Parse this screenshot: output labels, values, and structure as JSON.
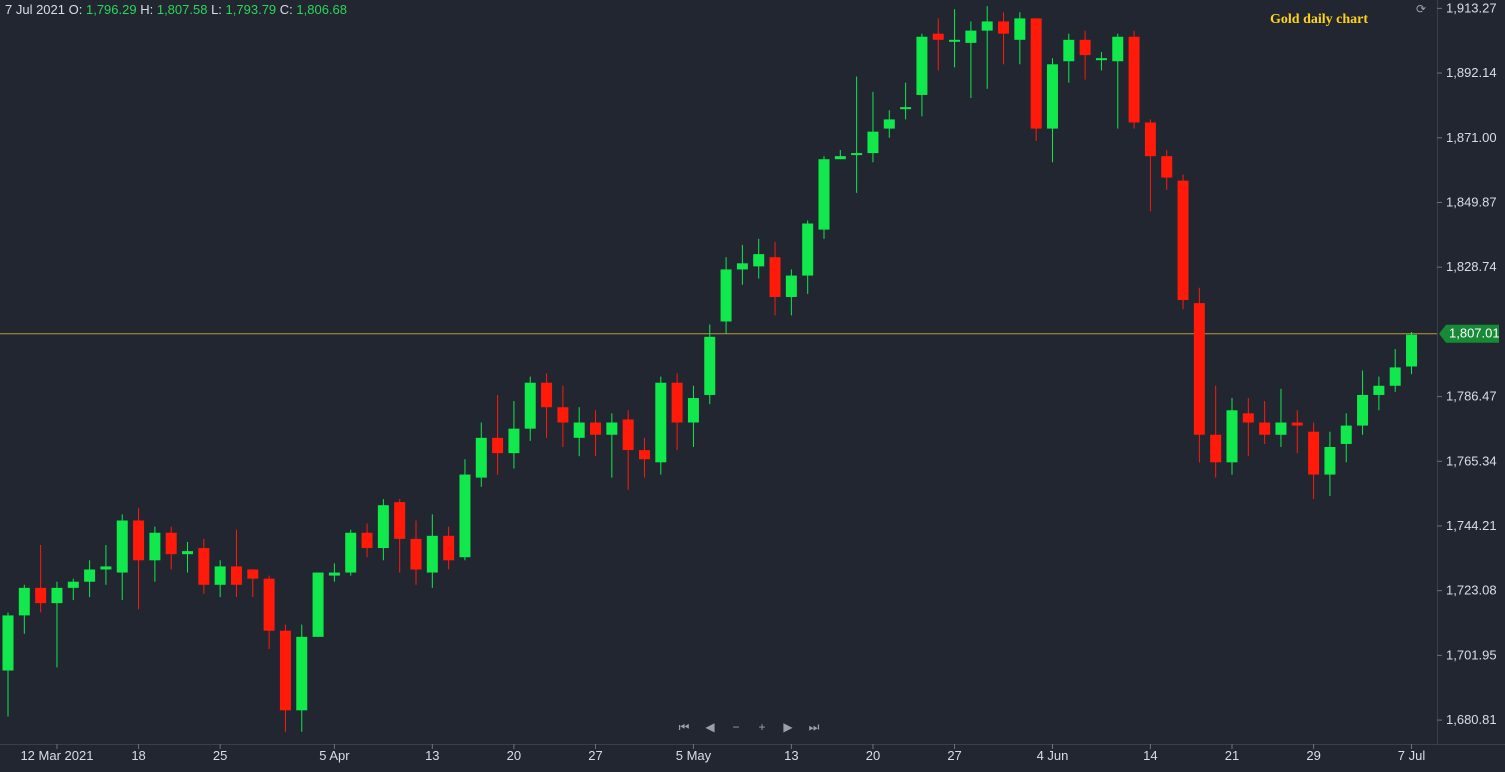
{
  "legend": {
    "date": "7 Jul 2021",
    "o_label": "O:",
    "o": "1,796.29",
    "h_label": "H:",
    "h": "1,807.58",
    "l_label": "L:",
    "l": "1,793.79",
    "c_label": "C:",
    "c": "1,806.68"
  },
  "title": "Gold daily chart",
  "current_price_label": "1,807.01",
  "colors": {
    "up": "#11e84c",
    "down": "#ff1a0a",
    "bg": "#212631",
    "grid": "#3a3f4a",
    "text": "#d9dde5",
    "price_line": "#b59a3a",
    "price_badge": "#178a35"
  },
  "nav": {
    "first": "⏮",
    "prev": "◀",
    "zoom_out": "−",
    "zoom_in": "+",
    "next": "▶",
    "last": "⏭"
  },
  "chart_data": {
    "type": "candlestick",
    "title": "Gold daily chart",
    "y_ticks": [
      "1,913.27",
      "1,892.14",
      "1,871.00",
      "1,849.87",
      "1,828.74",
      "1,807.01",
      "1,786.47",
      "1,765.34",
      "1,744.21",
      "1,723.08",
      "1,701.95",
      "1,680.81"
    ],
    "ylim": [
      1673,
      1916
    ],
    "current_price": 1807.01,
    "x_labels": [
      {
        "label": "12 Mar 2021",
        "index": 3
      },
      {
        "label": "18",
        "index": 8
      },
      {
        "label": "25",
        "index": 13
      },
      {
        "label": "5 Apr",
        "index": 20
      },
      {
        "label": "13",
        "index": 26
      },
      {
        "label": "20",
        "index": 31
      },
      {
        "label": "27",
        "index": 36
      },
      {
        "label": "5 May",
        "index": 42
      },
      {
        "label": "13",
        "index": 48
      },
      {
        "label": "20",
        "index": 53
      },
      {
        "label": "27",
        "index": 58
      },
      {
        "label": "4 Jun",
        "index": 64
      },
      {
        "label": "14",
        "index": 70
      },
      {
        "label": "21",
        "index": 75
      },
      {
        "label": "29",
        "index": 80
      },
      {
        "label": "7 Jul",
        "index": 86
      }
    ],
    "candles": [
      [
        1697,
        1715,
        1682,
        1716
      ],
      [
        1715,
        1724,
        1709,
        1725
      ],
      [
        1724,
        1719,
        1716,
        1738
      ],
      [
        1719,
        1724,
        1698,
        1726
      ],
      [
        1724,
        1726,
        1720,
        1727
      ],
      [
        1726,
        1730,
        1721,
        1733
      ],
      [
        1730,
        1731,
        1725,
        1738
      ],
      [
        1729,
        1746,
        1720,
        1748
      ],
      [
        1746,
        1733,
        1717,
        1750
      ],
      [
        1733,
        1742,
        1726,
        1744
      ],
      [
        1742,
        1735,
        1730,
        1744
      ],
      [
        1735,
        1736,
        1729,
        1739
      ],
      [
        1737,
        1725,
        1722,
        1740
      ],
      [
        1725,
        1731,
        1721,
        1733
      ],
      [
        1731,
        1725,
        1721,
        1743
      ],
      [
        1730,
        1727,
        1721,
        1730
      ],
      [
        1727,
        1710,
        1704,
        1728
      ],
      [
        1710,
        1684,
        1677,
        1712
      ],
      [
        1684,
        1708,
        1677,
        1712
      ],
      [
        1708,
        1729,
        1708,
        1729
      ],
      [
        1728,
        1729,
        1726,
        1732
      ],
      [
        1729,
        1742,
        1728,
        1743
      ],
      [
        1742,
        1737,
        1734,
        1745
      ],
      [
        1737,
        1751,
        1733,
        1753
      ],
      [
        1752,
        1740,
        1729,
        1753
      ],
      [
        1740,
        1730,
        1725,
        1746
      ],
      [
        1729,
        1741,
        1724,
        1748
      ],
      [
        1741,
        1733,
        1730,
        1744
      ],
      [
        1734,
        1761,
        1733,
        1766
      ],
      [
        1760,
        1773,
        1757,
        1778
      ],
      [
        1773,
        1768,
        1761,
        1787
      ],
      [
        1768,
        1776,
        1763,
        1785
      ],
      [
        1776,
        1791,
        1772,
        1793
      ],
      [
        1791,
        1783,
        1773,
        1794
      ],
      [
        1783,
        1778,
        1770,
        1790
      ],
      [
        1773,
        1778,
        1767,
        1783
      ],
      [
        1778,
        1774,
        1767,
        1782
      ],
      [
        1774,
        1778,
        1760,
        1781
      ],
      [
        1779,
        1769,
        1756,
        1782
      ],
      [
        1769,
        1766,
        1760,
        1773
      ],
      [
        1765,
        1791,
        1761,
        1793
      ],
      [
        1791,
        1778,
        1769,
        1794
      ],
      [
        1778,
        1786,
        1770,
        1790
      ],
      [
        1787,
        1806,
        1784,
        1810
      ],
      [
        1811,
        1828,
        1807,
        1832
      ],
      [
        1828,
        1830,
        1823,
        1836
      ],
      [
        1829,
        1833,
        1825,
        1838
      ],
      [
        1832,
        1819,
        1813,
        1837
      ],
      [
        1819,
        1826,
        1813,
        1828
      ],
      [
        1826,
        1843,
        1820,
        1844
      ],
      [
        1841,
        1864,
        1838,
        1865
      ],
      [
        1864,
        1865,
        1864,
        1867
      ],
      [
        1866,
        1866,
        1853,
        1891
      ],
      [
        1866,
        1873,
        1863,
        1886
      ],
      [
        1874,
        1877,
        1871,
        1880
      ],
      [
        1881,
        1881,
        1877,
        1889
      ],
      [
        1885,
        1904,
        1878,
        1905
      ],
      [
        1905,
        1903,
        1893,
        1910
      ],
      [
        1903,
        1903,
        1894,
        1913
      ],
      [
        1902,
        1906,
        1884,
        1909
      ],
      [
        1906,
        1909,
        1887,
        1914
      ],
      [
        1909,
        1905,
        1895,
        1912
      ],
      [
        1903,
        1910,
        1895,
        1912
      ],
      [
        1910,
        1874,
        1870,
        1910
      ],
      [
        1874,
        1895,
        1863,
        1897
      ],
      [
        1896,
        1903,
        1889,
        1905
      ],
      [
        1903,
        1898,
        1890,
        1906
      ],
      [
        1897,
        1897,
        1893,
        1899
      ],
      [
        1896,
        1904,
        1874,
        1905
      ],
      [
        1904,
        1876,
        1874,
        1906
      ],
      [
        1876,
        1865,
        1847,
        1877
      ],
      [
        1865,
        1858,
        1854,
        1867
      ],
      [
        1857,
        1818,
        1815,
        1859
      ],
      [
        1817,
        1774,
        1765,
        1822
      ],
      [
        1774,
        1765,
        1760,
        1790
      ],
      [
        1765,
        1782,
        1761,
        1786
      ],
      [
        1781,
        1778,
        1767,
        1786
      ],
      [
        1778,
        1774,
        1771,
        1785
      ],
      [
        1774,
        1778,
        1770,
        1789
      ],
      [
        1778,
        1777,
        1768,
        1782
      ],
      [
        1775,
        1761,
        1753,
        1778
      ],
      [
        1761,
        1770,
        1754,
        1775
      ],
      [
        1771,
        1777,
        1765,
        1781
      ],
      [
        1777,
        1787,
        1774,
        1795
      ],
      [
        1787,
        1790,
        1782,
        1793
      ],
      [
        1790,
        1796,
        1788,
        1802
      ],
      [
        1796.29,
        1806.68,
        1793.79,
        1807.58
      ]
    ]
  }
}
